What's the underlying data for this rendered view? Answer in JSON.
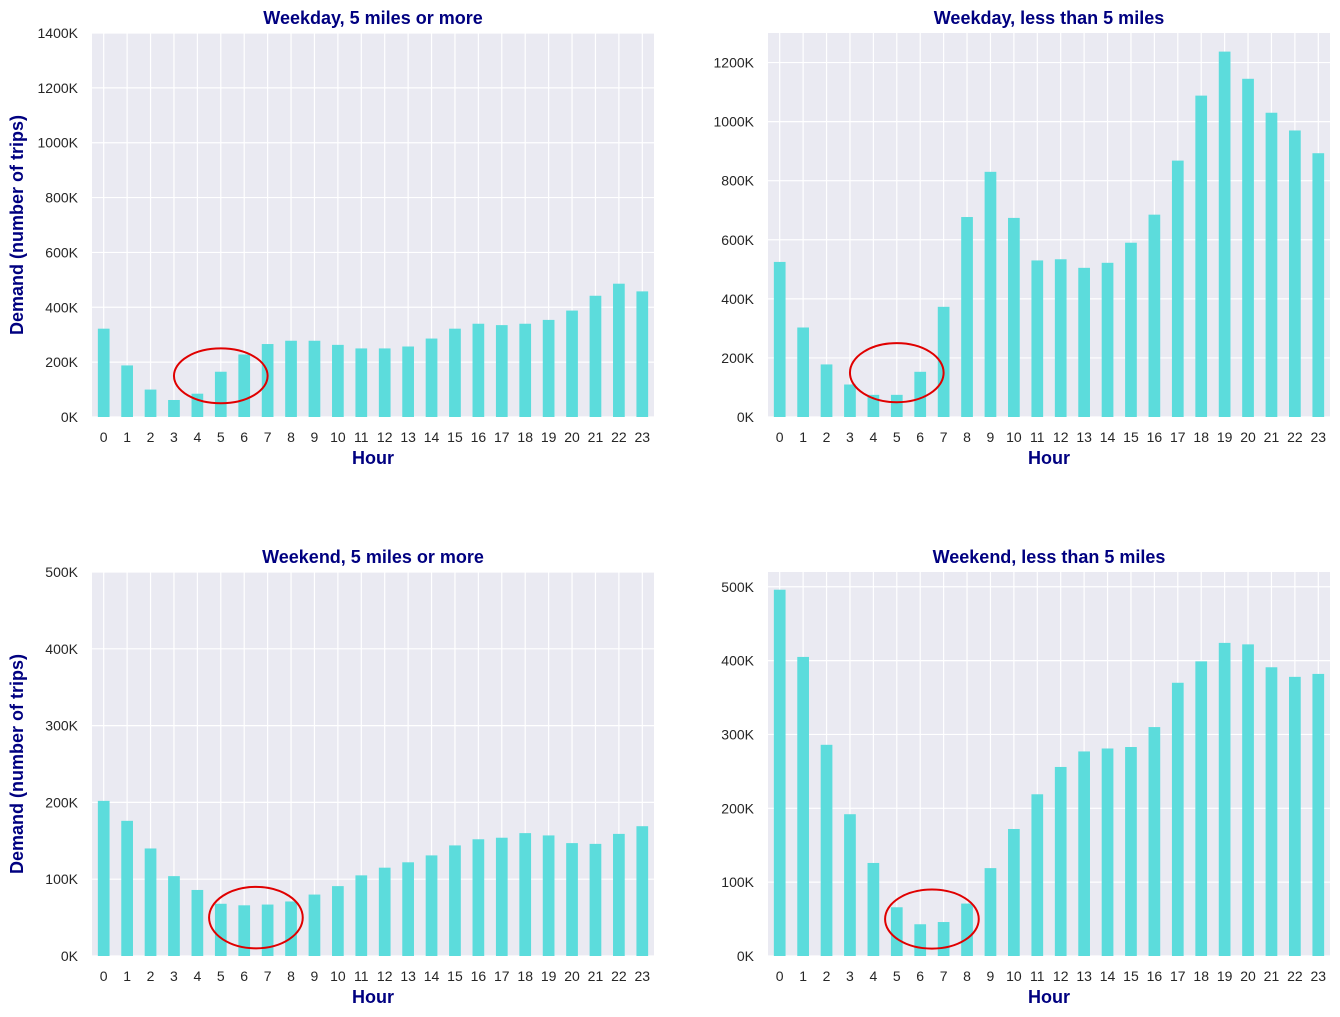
{
  "colors": {
    "bar": "#5CDCDC",
    "plot_background": "#EAEAF2",
    "grid": "#FFFFFF",
    "title_text": "#000080",
    "annotation": "#E00000"
  },
  "chart_data": [
    {
      "type": "bar",
      "title": "Weekday, 5 miles or more",
      "xlabel": "Hour",
      "ylabel": "Demand (number of trips)",
      "categories": [
        "0",
        "1",
        "2",
        "3",
        "4",
        "5",
        "6",
        "7",
        "8",
        "9",
        "10",
        "11",
        "12",
        "13",
        "14",
        "15",
        "16",
        "17",
        "18",
        "19",
        "20",
        "21",
        "22",
        "23"
      ],
      "values": [
        322000,
        188000,
        100000,
        62000,
        85000,
        165000,
        228000,
        266000,
        278000,
        278000,
        263000,
        250000,
        250000,
        257000,
        286000,
        322000,
        340000,
        335000,
        340000,
        354000,
        388000,
        442000,
        486000,
        458000
      ],
      "ylim": [
        0,
        1400000
      ],
      "yticks": [
        0,
        200000,
        400000,
        600000,
        800000,
        1000000,
        1200000,
        1400000
      ],
      "ytick_labels": [
        "0K",
        "200K",
        "400K",
        "600K",
        "800K",
        "1000K",
        "1200K",
        "1400K"
      ],
      "grid": true,
      "annotation": {
        "shape": "ellipse",
        "center_x": 5,
        "center_y": 150000,
        "radius_x_categories": 2.0,
        "radius_y": 100000
      }
    },
    {
      "type": "bar",
      "title": "Weekday, less than 5 miles",
      "xlabel": "Hour",
      "ylabel": "",
      "categories": [
        "0",
        "1",
        "2",
        "3",
        "4",
        "5",
        "6",
        "7",
        "8",
        "9",
        "10",
        "11",
        "12",
        "13",
        "14",
        "15",
        "16",
        "17",
        "18",
        "19",
        "20",
        "21",
        "22",
        "23"
      ],
      "values": [
        525000,
        303000,
        178000,
        110000,
        75000,
        75000,
        153000,
        373000,
        677000,
        830000,
        674000,
        530000,
        534000,
        505000,
        522000,
        590000,
        685000,
        868000,
        1088000,
        1237000,
        1145000,
        1030000,
        970000,
        893000
      ],
      "ylim": [
        0,
        1300000
      ],
      "yticks": [
        0,
        200000,
        400000,
        600000,
        800000,
        1000000,
        1200000
      ],
      "ytick_labels": [
        "0K",
        "200K",
        "400K",
        "600K",
        "800K",
        "1000K",
        "1200K"
      ],
      "grid": true,
      "annotation": {
        "shape": "ellipse",
        "center_x": 5,
        "center_y": 150000,
        "radius_x_categories": 2.0,
        "radius_y": 100000
      }
    },
    {
      "type": "bar",
      "title": "Weekend, 5 miles or more",
      "xlabel": "Hour",
      "ylabel": "Demand (number of trips)",
      "categories": [
        "0",
        "1",
        "2",
        "3",
        "4",
        "5",
        "6",
        "7",
        "8",
        "9",
        "10",
        "11",
        "12",
        "13",
        "14",
        "15",
        "16",
        "17",
        "18",
        "19",
        "20",
        "21",
        "22",
        "23"
      ],
      "values": [
        202000,
        176000,
        140000,
        104000,
        86000,
        68000,
        66000,
        67000,
        71000,
        80000,
        91000,
        105000,
        115000,
        122000,
        131000,
        144000,
        152000,
        154000,
        160000,
        157000,
        147000,
        146000,
        159000,
        169000
      ],
      "ylim": [
        0,
        500000
      ],
      "yticks": [
        0,
        100000,
        200000,
        300000,
        400000,
        500000
      ],
      "ytick_labels": [
        "0K",
        "100K",
        "200K",
        "300K",
        "400K",
        "500K"
      ],
      "grid": true,
      "annotation": {
        "shape": "ellipse",
        "center_x": 6.5,
        "center_y": 50000,
        "radius_x_categories": 2.0,
        "radius_y": 40000
      }
    },
    {
      "type": "bar",
      "title": "Weekend, less than 5 miles",
      "xlabel": "Hour",
      "ylabel": "",
      "categories": [
        "0",
        "1",
        "2",
        "3",
        "4",
        "5",
        "6",
        "7",
        "8",
        "9",
        "10",
        "11",
        "12",
        "13",
        "14",
        "15",
        "16",
        "17",
        "18",
        "19",
        "20",
        "21",
        "22",
        "23"
      ],
      "values": [
        496000,
        405000,
        286000,
        192000,
        126000,
        66000,
        43000,
        46000,
        71000,
        119000,
        172000,
        219000,
        256000,
        277000,
        281000,
        283000,
        310000,
        370000,
        399000,
        424000,
        422000,
        391000,
        378000,
        382000
      ],
      "ylim": [
        0,
        520000
      ],
      "yticks": [
        0,
        100000,
        200000,
        300000,
        400000,
        500000
      ],
      "ytick_labels": [
        "0K",
        "100K",
        "200K",
        "300K",
        "400K",
        "500K"
      ],
      "grid": true,
      "annotation": {
        "shape": "ellipse",
        "center_x": 6.5,
        "center_y": 50000,
        "radius_x_categories": 2.0,
        "radius_y": 40000
      }
    }
  ]
}
